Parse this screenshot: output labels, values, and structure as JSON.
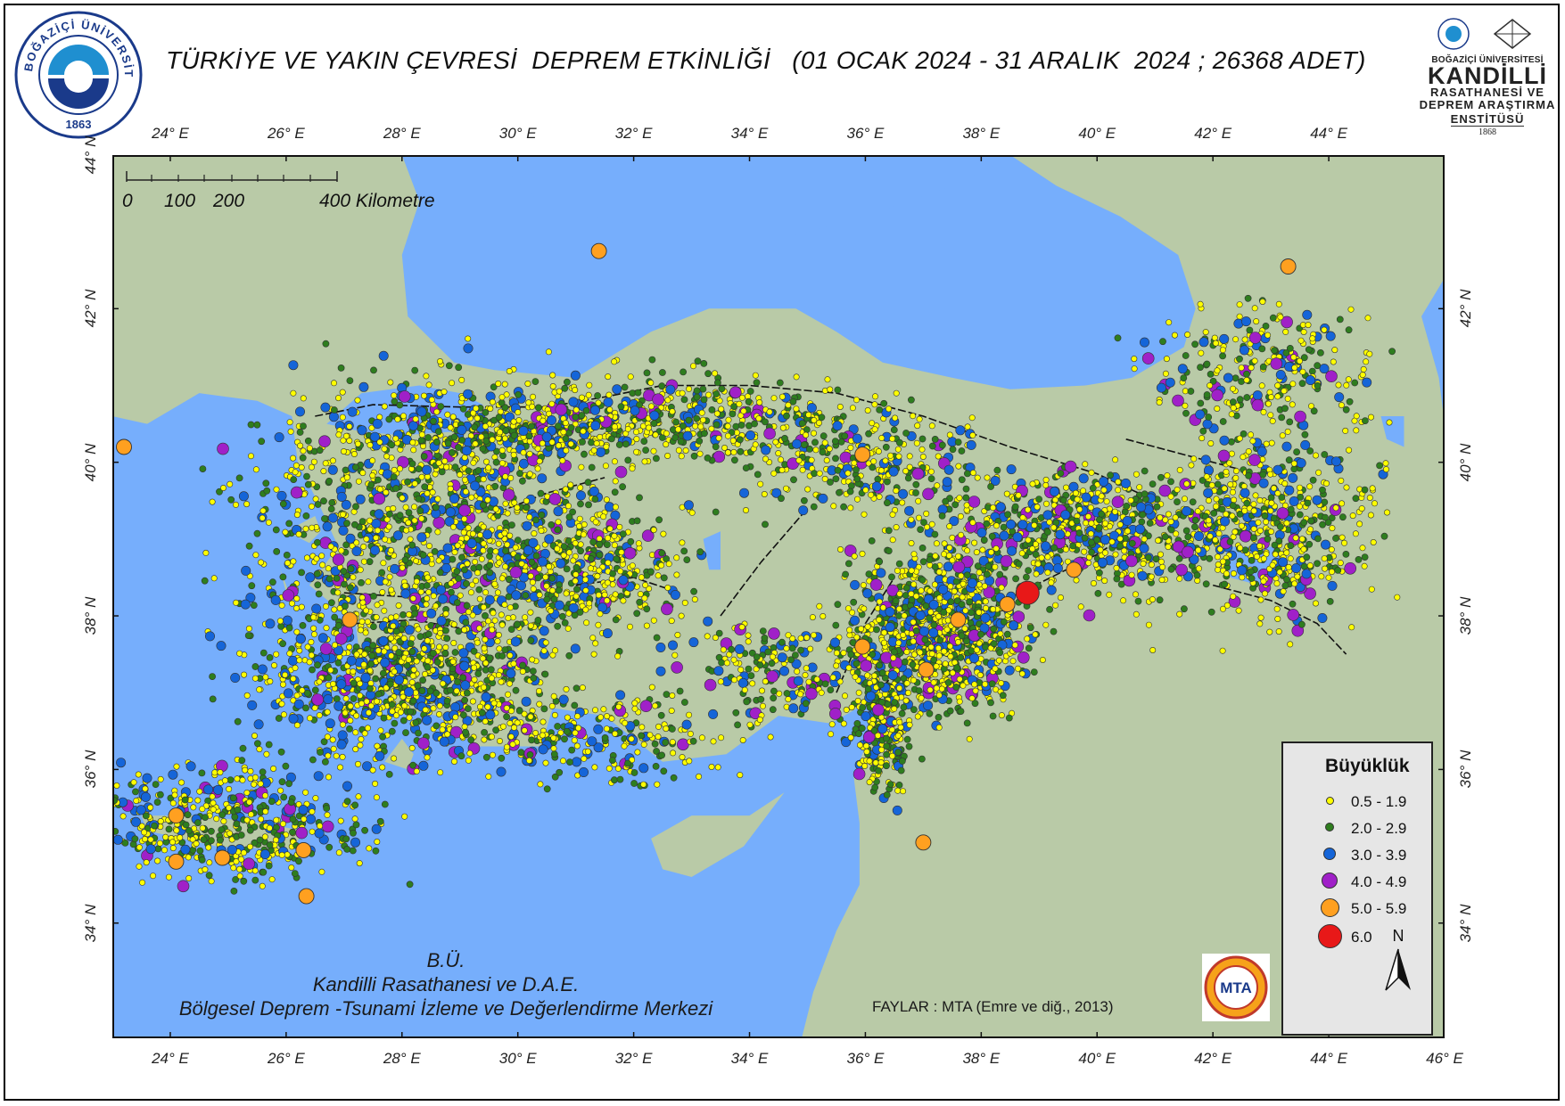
{
  "title": "TÜRKİYE VE YAKIN ÇEVRESİ  DEPREM ETKİNLİĞİ   (01 OCAK 2024 - 31 ARALIK  2024 ; 26368 ADET)",
  "logo_left": {
    "ring_text": "BOĞAZİÇİ ÜNİVERSİTESİ",
    "year": "1863"
  },
  "logo_right": {
    "line1": "BOĞAZİÇİ ÜNİVERSİTESİ",
    "line2": "KANDİLLİ",
    "line3": "RASATHANESİ VE",
    "line4": "DEPREM ARAŞTIRMA",
    "line5": "ENSTİTÜSÜ",
    "year": "1868"
  },
  "axes": {
    "top_lon_labels": [
      "24° E",
      "26° E",
      "28° E",
      "30° E",
      "32° E",
      "34° E",
      "36° E",
      "38° E",
      "40° E",
      "42° E",
      "44° E"
    ],
    "bottom_lon_labels": [
      "24° E",
      "26° E",
      "28° E",
      "30° E",
      "32° E",
      "34° E",
      "36° E",
      "38° E",
      "40° E",
      "42° E",
      "44° E",
      "46° E"
    ],
    "left_lat_labels": [
      "44° N",
      "42° N",
      "40° N",
      "38° N",
      "36° N",
      "34° N"
    ],
    "right_lat_labels": [
      "42° N",
      "40° N",
      "38° N",
      "36° N",
      "34° N"
    ],
    "lon_range": [
      23,
      46
    ],
    "lat_range": [
      32.5,
      44
    ]
  },
  "scale_bar": {
    "labels": [
      "0",
      "100",
      "200",
      "400 Kilometre"
    ]
  },
  "credit": {
    "line1": "B.Ü.",
    "line2": "Kandilli Rasathanesi ve D.A.E.",
    "line3": "Bölgesel Deprem -Tsunami İzleme ve Değerlendirme Merkezi"
  },
  "fault_note": "FAYLAR : MTA (Emre ve diğ., 2013)",
  "mta_logo": {
    "text": "MTA"
  },
  "legend": {
    "title": "Büyüklük",
    "items": [
      {
        "label": "0.5 - 1.9",
        "color": "#ffff00"
      },
      {
        "label": "2.0 - 2.9",
        "color": "#2e7d1e"
      },
      {
        "label": "3.0 - 3.9",
        "color": "#1565d8"
      },
      {
        "label": "4.0 - 4.9",
        "color": "#a020c8"
      },
      {
        "label": "5.0 - 5.9",
        "color": "#ffa020"
      },
      {
        "label": "6.0",
        "color": "#e81818"
      }
    ]
  },
  "north_arrow": "N",
  "colors": {
    "sea": "#76aefc",
    "land": "#b9caa7",
    "fault": "#111111"
  },
  "major_events": [
    {
      "lon": 38.8,
      "lat": 38.3,
      "mag_class": "6.0"
    },
    {
      "lon": 31.4,
      "lat": 42.75,
      "mag_class": "5.0 - 5.9"
    },
    {
      "lon": 23.2,
      "lat": 40.2,
      "mag_class": "5.0 - 5.9"
    },
    {
      "lon": 35.95,
      "lat": 40.1,
      "mag_class": "5.0 - 5.9"
    },
    {
      "lon": 27.1,
      "lat": 37.95,
      "mag_class": "5.0 - 5.9"
    },
    {
      "lon": 35.95,
      "lat": 37.6,
      "mag_class": "5.0 - 5.9"
    },
    {
      "lon": 37.6,
      "lat": 37.95,
      "mag_class": "5.0 - 5.9"
    },
    {
      "lon": 37.05,
      "lat": 37.3,
      "mag_class": "5.0 - 5.9"
    },
    {
      "lon": 38.45,
      "lat": 38.15,
      "mag_class": "5.0 - 5.9"
    },
    {
      "lon": 39.6,
      "lat": 38.6,
      "mag_class": "5.0 - 5.9"
    },
    {
      "lon": 43.3,
      "lat": 42.55,
      "mag_class": "5.0 - 5.9"
    },
    {
      "lon": 24.1,
      "lat": 35.4,
      "mag_class": "5.0 - 5.9"
    },
    {
      "lon": 24.1,
      "lat": 34.8,
      "mag_class": "5.0 - 5.9"
    },
    {
      "lon": 24.9,
      "lat": 34.85,
      "mag_class": "5.0 - 5.9"
    },
    {
      "lon": 26.3,
      "lat": 34.95,
      "mag_class": "5.0 - 5.9"
    },
    {
      "lon": 26.35,
      "lat": 34.35,
      "mag_class": "5.0 - 5.9"
    },
    {
      "lon": 37.0,
      "lat": 35.05,
      "mag_class": "5.0 - 5.9"
    }
  ]
}
